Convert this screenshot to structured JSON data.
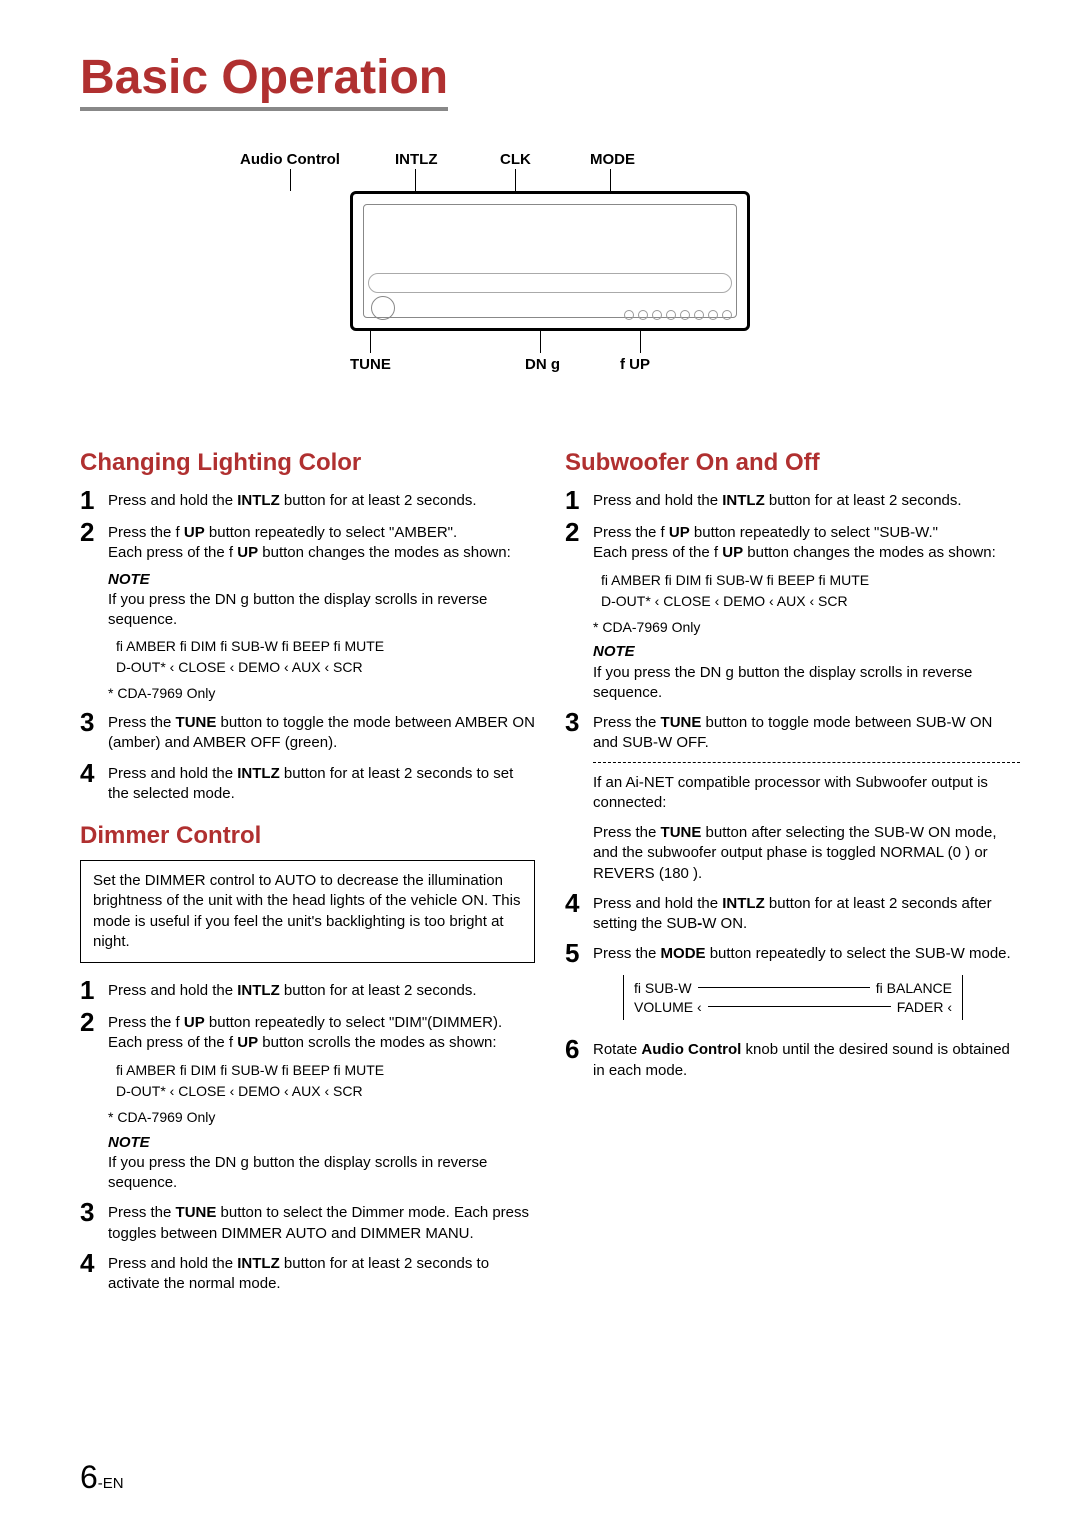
{
  "title": "Basic Operation",
  "diagram_labels": {
    "audio_control": "Audio Control",
    "intlz": "INTLZ",
    "clk": "CLK",
    "mode": "MODE",
    "tune": "TUNE",
    "dn": "DN g",
    "up": "f   UP"
  },
  "left": {
    "section1_title": "Changing Lighting Color",
    "s1": {
      "step1": "Press and hold the <b>INTLZ</b> button for at least 2 seconds.",
      "step2a": "Press the f   <b>UP</b> button repeatedly to select \"AMBER\".",
      "step2b": "Each press of the f   <b>UP</b> button changes the modes as shown:",
      "note_label": "NOTE",
      "note": "If you press the DN g   button the display scrolls in reverse sequence.",
      "cycle_row1": "fi  AMBER fi  DIM fi  SUB-W fi  BEEP fi  MUTE",
      "cycle_row2": "D-OUT*  ‹  CLOSE ‹  DEMO  ‹  AUX  ‹  SCR",
      "cycle_foot": "* CDA-7969 Only",
      "step3": "Press the <b>TUNE</b> button to toggle the mode between AMBER ON (amber) and AMBER OFF (green).",
      "step4": "Press and hold the <b>INTLZ</b> button for at least 2 seconds to set the selected mode."
    },
    "section2_title": "Dimmer Control",
    "s2": {
      "info": "Set the DIMMER control to AUTO to decrease the illumination brightness of the unit with the head lights of the vehicle ON. This mode is useful if you feel the unit's backlighting is too bright at night.",
      "step1": "Press and hold the <b>INTLZ</b> button for at least 2 seconds.",
      "step2a": "Press the f   <b>UP</b> button repeatedly to select \"DIM\"(DIMMER).",
      "step2b": "Each press of the f   <b>UP</b> button scrolls the modes as shown:",
      "cycle_row1": "fi  AMBER fi  DIM fi  SUB-W fi  BEEP fi  MUTE",
      "cycle_row2": "D-OUT*  ‹  CLOSE ‹  DEMO  ‹  AUX  ‹  SCR",
      "cycle_foot": "* CDA-7969 Only",
      "note_label": "NOTE",
      "note": "If you press the DN g   button the display scrolls in reverse sequence.",
      "step3": "Press the <b>TUNE</b> button to select the Dimmer mode. Each press toggles between DIMMER AUTO and DIMMER MANU.",
      "step4": "Press and hold the <b>INTLZ</b> button for at least 2 seconds to activate the normal mode."
    }
  },
  "right": {
    "section1_title": "Subwoofer On and Off",
    "s1": {
      "step1": "Press and hold the <b>INTLZ</b> button for at least 2 seconds.",
      "step2a": "Press the f   <b>UP</b> button repeatedly to select \"SUB-W.\"",
      "step2b": "Each press of the f   <b>UP</b> button changes the modes as shown:",
      "cycle_row1": "fi  AMBER fi  DIM fi  SUB-W fi  BEEP fi  MUTE",
      "cycle_row2": "D-OUT*  ‹  CLOSE ‹  DEMO  ‹  AUX  ‹  SCR",
      "cycle_foot": "* CDA-7969 Only",
      "note_label": "NOTE",
      "note": "If you press the DN g   button the display scrolls in reverse sequence.",
      "step3": "Press the <b>TUNE</b> button to toggle mode between SUB-W ON and SUB-W OFF.",
      "after_dash1": "If an Ai-NET compatible processor with Subwoofer output is connected:",
      "after_dash2": "Press the <b>TUNE</b> button after selecting the SUB-W ON mode, and the subwoofer output phase is toggled  NORMAL (0 ) or REVERS (180 ).",
      "step4": "Press and hold the <b>INTLZ</b> button for at least 2 seconds after setting the SUB<b>-</b>W ON.",
      "step5": "Press the <b>MODE</b> button repeatedly to select the SUB-W mode.",
      "diagram": {
        "r1a": "fi SUB-W",
        "r1b": "fi  BALANCE",
        "r2a": "VOLUME ‹",
        "r2b": "FADER ‹"
      },
      "step6": "Rotate <b>Audio Control</b> knob until the desired sound is obtained in each mode."
    }
  },
  "page_number": {
    "big": "6",
    "suffix": "-EN"
  },
  "colors": {
    "title": "#b03030",
    "text": "#000000",
    "underline": "#888888"
  }
}
